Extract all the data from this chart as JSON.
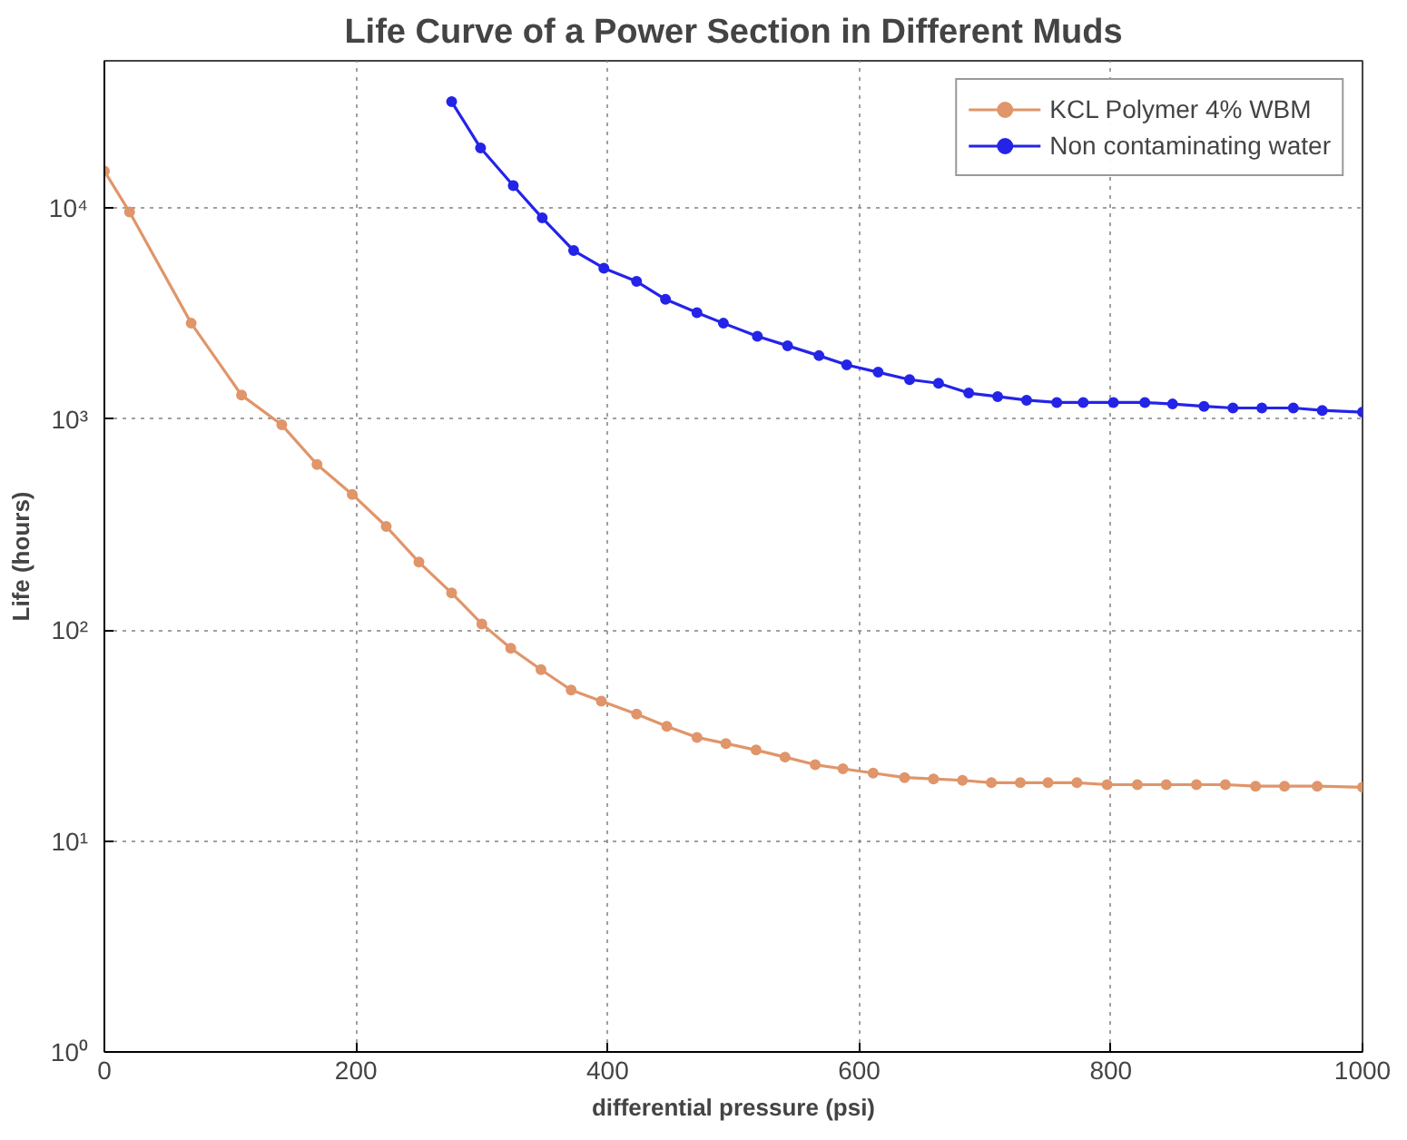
{
  "chart_data": {
    "type": "line",
    "title": "Life Curve of a Power Section in Different Muds",
    "xlabel": "differential pressure (psi)",
    "ylabel": "Life (hours)",
    "xlim": [
      0,
      1000
    ],
    "xticks": [
      0,
      200,
      400,
      600,
      800,
      1000
    ],
    "ylim": [
      1,
      50000
    ],
    "yticks": [
      {
        "value": 1,
        "label": "10⁰"
      },
      {
        "value": 10,
        "label": "10¹"
      },
      {
        "value": 100,
        "label": "10²"
      },
      {
        "value": 1000,
        "label": "10³"
      },
      {
        "value": 10000,
        "label": "10⁴"
      }
    ],
    "log": "y",
    "grid": true,
    "legend": "top right",
    "marker": "circle",
    "line_style": "solid",
    "series": [
      {
        "name": "KCL Polymer 4% WBM",
        "color": "#e0956a",
        "x": [
          0,
          20,
          69,
          109,
          141,
          169,
          197,
          224,
          250,
          276,
          300,
          323,
          347,
          371,
          395,
          423,
          447,
          471,
          494,
          518,
          541,
          565,
          587,
          611,
          636,
          659,
          682,
          705,
          728,
          750,
          773,
          797,
          821,
          844,
          868,
          891,
          915,
          938,
          964,
          1000
        ],
        "values": [
          15000,
          9600,
          2850,
          1300,
          940,
          610,
          440,
          310,
          210,
          150,
          107,
          82,
          65,
          52,
          46,
          40,
          35,
          31,
          29,
          27,
          25,
          23,
          22,
          21,
          20,
          19.7,
          19.4,
          18.9,
          18.9,
          18.9,
          18.9,
          18.5,
          18.5,
          18.5,
          18.5,
          18.5,
          18.2,
          18.2,
          18.2,
          18
        ]
      },
      {
        "name": "Non contaminating water",
        "color": "#2424e8",
        "x": [
          276,
          299,
          325,
          348,
          373,
          397,
          423,
          446,
          471,
          492,
          519,
          543,
          568,
          590,
          615,
          640,
          663,
          687,
          710,
          733,
          757,
          778,
          802,
          827,
          849,
          874,
          897,
          920,
          945,
          968,
          1000
        ],
        "values": [
          32000,
          19300,
          12800,
          9000,
          6300,
          5200,
          4500,
          3700,
          3200,
          2850,
          2470,
          2230,
          2000,
          1810,
          1670,
          1540,
          1480,
          1330,
          1280,
          1230,
          1200,
          1200,
          1200,
          1200,
          1180,
          1150,
          1130,
          1130,
          1130,
          1100,
          1080
        ]
      }
    ]
  }
}
